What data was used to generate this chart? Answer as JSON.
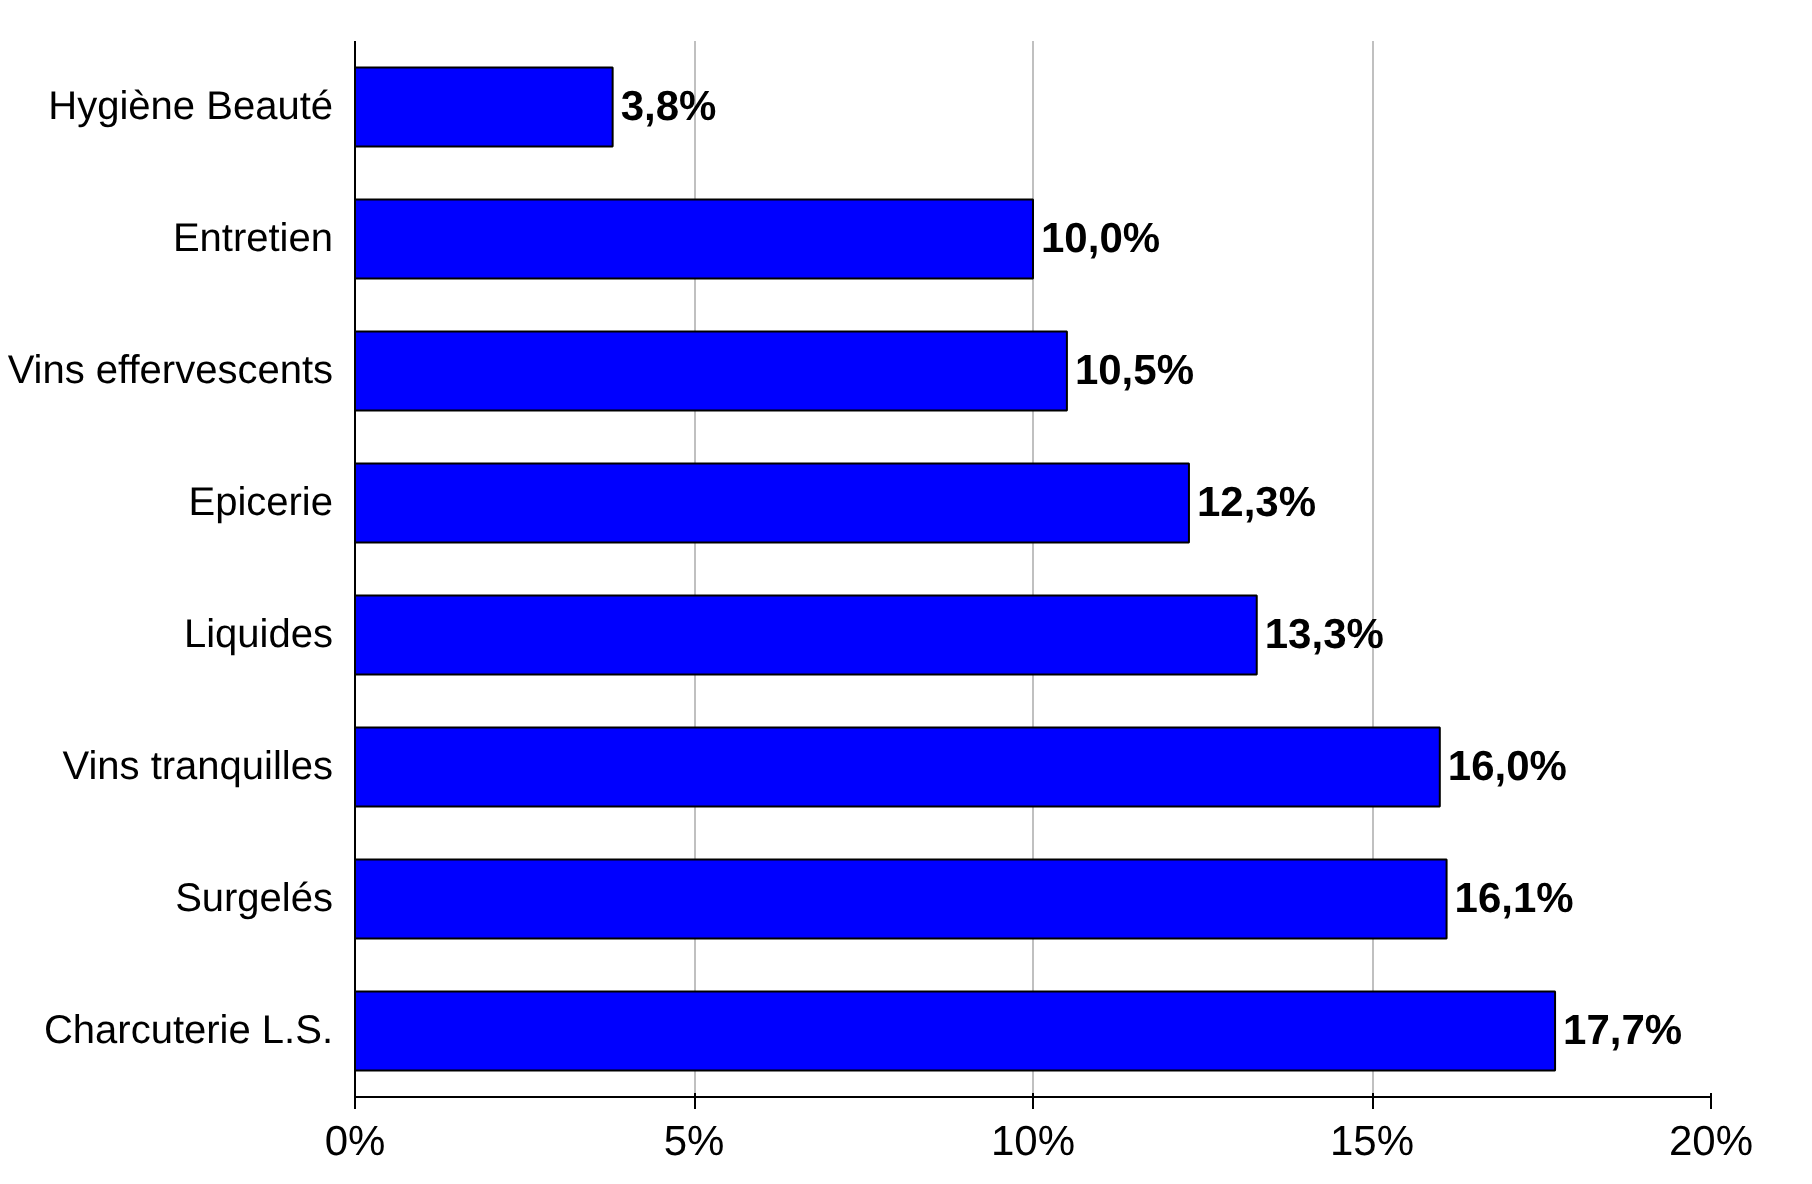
{
  "chart_data": {
    "type": "bar",
    "orientation": "horizontal",
    "categories": [
      "Hygiène Beauté",
      "Entretien",
      "Vins effervescents",
      "Epicerie",
      "Liquides",
      "Vins tranquilles",
      "Surgelés",
      "Charcuterie L.S."
    ],
    "values": [
      3.8,
      10.0,
      10.5,
      12.3,
      13.3,
      16.0,
      16.1,
      17.7
    ],
    "value_labels": [
      "3,8%",
      "10,0%",
      "10,5%",
      "12,3%",
      "13,3%",
      "16,0%",
      "16,1%",
      "17,7%"
    ],
    "color": "#0000ff",
    "xlim": [
      0,
      20
    ],
    "xticks": [
      {
        "value": 0,
        "label": "0%"
      },
      {
        "value": 5,
        "label": "5%"
      },
      {
        "value": 10,
        "label": "10%"
      },
      {
        "value": 15,
        "label": "15%"
      },
      {
        "value": 20,
        "label": "20%"
      }
    ],
    "grid": "x"
  }
}
